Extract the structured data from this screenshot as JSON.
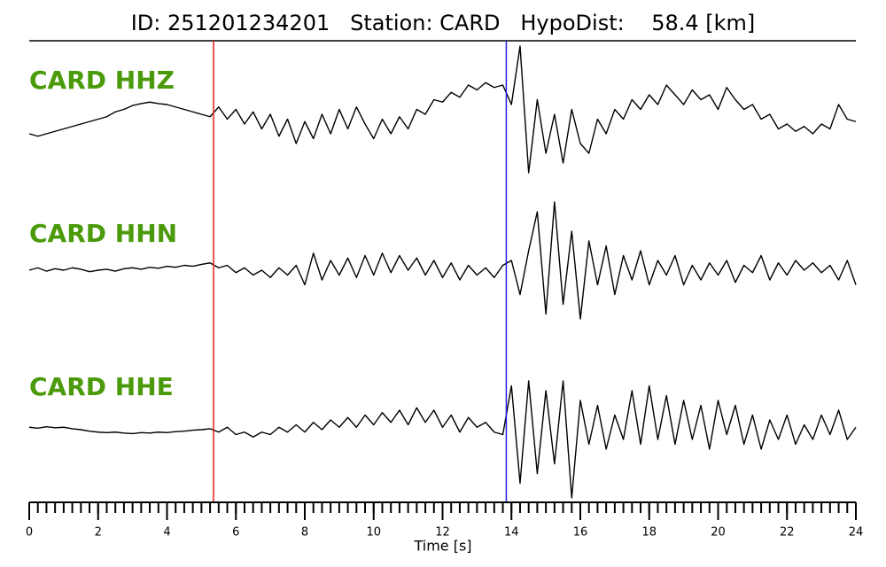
{
  "chart_data": {
    "type": "seismogram",
    "title": "ID: 251201234201   Station: CARD   HypoDist:    58.4 [km]",
    "x_label": "Time [s]",
    "xlim": [
      0,
      24
    ],
    "xticks": [
      0,
      2,
      4,
      6,
      8,
      10,
      12,
      14,
      16,
      18,
      20,
      22,
      24
    ],
    "minor_tick_interval": 0.25,
    "label_color": "#4a9a0a",
    "markers": [
      {
        "x": 5.35,
        "color": "#e8201c"
      },
      {
        "x": 13.85,
        "color": "#2020e0"
      }
    ],
    "x": [
      0,
      0.25,
      0.5,
      0.75,
      1,
      1.25,
      1.5,
      1.75,
      2,
      2.25,
      2.5,
      2.75,
      3,
      3.25,
      3.5,
      3.75,
      4,
      4.25,
      4.5,
      4.75,
      5,
      5.25,
      5.5,
      5.75,
      6,
      6.25,
      6.5,
      6.75,
      7,
      7.25,
      7.5,
      7.75,
      8,
      8.25,
      8.5,
      8.75,
      9,
      9.25,
      9.5,
      9.75,
      10,
      10.25,
      10.5,
      10.75,
      11,
      11.25,
      11.5,
      11.75,
      12,
      12.25,
      12.5,
      12.75,
      13,
      13.25,
      13.5,
      13.75,
      14,
      14.25,
      14.5,
      14.75,
      15,
      15.25,
      15.5,
      15.75,
      16,
      16.25,
      16.5,
      16.75,
      17,
      17.25,
      17.5,
      17.75,
      18,
      18.25,
      18.5,
      18.75,
      19,
      19.25,
      19.5,
      19.75,
      20,
      20.25,
      20.5,
      20.75,
      21,
      21.25,
      21.5,
      21.75,
      22,
      22.25,
      22.5,
      22.75,
      23,
      23.25,
      23.5,
      23.75,
      24
    ],
    "series": [
      {
        "name": "CARD HHZ",
        "color": "#000000",
        "values": [
          -0.2,
          -0.25,
          -0.2,
          -0.15,
          -0.1,
          -0.05,
          0,
          0.05,
          0.1,
          0.15,
          0.25,
          0.3,
          0.38,
          0.42,
          0.45,
          0.42,
          0.4,
          0.35,
          0.3,
          0.25,
          0.2,
          0.15,
          0.35,
          0.1,
          0.3,
          0,
          0.25,
          -0.1,
          0.2,
          -0.25,
          0.1,
          -0.4,
          0.05,
          -0.3,
          0.2,
          -0.2,
          0.3,
          -0.1,
          0.35,
          0,
          -0.3,
          0.1,
          -0.2,
          0.15,
          -0.1,
          0.3,
          0.2,
          0.5,
          0.45,
          0.65,
          0.55,
          0.8,
          0.7,
          0.85,
          0.75,
          0.8,
          0.4,
          1.6,
          -1.0,
          0.5,
          -0.6,
          0.2,
          -0.8,
          0.3,
          -0.4,
          -0.6,
          0.1,
          -0.2,
          0.3,
          0.1,
          0.5,
          0.3,
          0.6,
          0.4,
          0.8,
          0.6,
          0.4,
          0.7,
          0.5,
          0.6,
          0.3,
          0.75,
          0.5,
          0.3,
          0.4,
          0.1,
          0.2,
          -0.1,
          0,
          -0.15,
          -0.05,
          -0.2,
          0,
          -0.1,
          0.4,
          0.1,
          0.05
        ]
      },
      {
        "name": "CARD HHN",
        "color": "#000000",
        "values": [
          0,
          0.05,
          -0.02,
          0.03,
          0,
          0.05,
          0.02,
          -0.03,
          0,
          0.02,
          -0.02,
          0.03,
          0.05,
          0.02,
          0.06,
          0.04,
          0.08,
          0.06,
          0.1,
          0.08,
          0.12,
          0.15,
          0.05,
          0.1,
          -0.05,
          0.05,
          -0.1,
          0,
          -0.15,
          0.05,
          -0.1,
          0.1,
          -0.3,
          0.35,
          -0.2,
          0.2,
          -0.1,
          0.25,
          -0.15,
          0.3,
          -0.1,
          0.35,
          -0.05,
          0.3,
          0,
          0.25,
          -0.1,
          0.2,
          -0.15,
          0.15,
          -0.2,
          0.1,
          -0.1,
          0.05,
          -0.15,
          0.1,
          0.2,
          -0.5,
          0.4,
          1.2,
          -0.9,
          1.4,
          -0.7,
          0.8,
          -1.0,
          0.6,
          -0.3,
          0.5,
          -0.5,
          0.3,
          -0.2,
          0.4,
          -0.3,
          0.2,
          -0.1,
          0.3,
          -0.3,
          0.1,
          -0.2,
          0.15,
          -0.1,
          0.2,
          -0.25,
          0.1,
          -0.05,
          0.3,
          -0.2,
          0.15,
          -0.1,
          0.2,
          0,
          0.15,
          -0.05,
          0.1,
          -0.2,
          0.2,
          -0.3
        ]
      },
      {
        "name": "CARD HHE",
        "color": "#000000",
        "values": [
          0.05,
          0.03,
          0.06,
          0.04,
          0.05,
          0.02,
          0,
          -0.03,
          -0.05,
          -0.06,
          -0.05,
          -0.07,
          -0.08,
          -0.06,
          -0.07,
          -0.05,
          -0.06,
          -0.04,
          -0.03,
          -0.01,
          0,
          0.02,
          -0.05,
          0.05,
          -0.1,
          -0.05,
          -0.15,
          -0.05,
          -0.1,
          0.05,
          -0.05,
          0.1,
          -0.05,
          0.15,
          0,
          0.2,
          0.05,
          0.25,
          0.05,
          0.3,
          0.1,
          0.35,
          0.15,
          0.4,
          0.1,
          0.45,
          0.15,
          0.4,
          0.05,
          0.3,
          -0.05,
          0.25,
          0.05,
          0.15,
          -0.05,
          -0.1,
          0.9,
          -1.1,
          1.0,
          -0.9,
          0.8,
          -0.7,
          1.0,
          -1.4,
          0.6,
          -0.3,
          0.5,
          -0.4,
          0.3,
          -0.2,
          0.8,
          -0.3,
          0.9,
          -0.2,
          0.7,
          -0.3,
          0.6,
          -0.2,
          0.5,
          -0.4,
          0.6,
          -0.1,
          0.5,
          -0.3,
          0.3,
          -0.4,
          0.2,
          -0.2,
          0.3,
          -0.3,
          0.1,
          -0.2,
          0.3,
          -0.1,
          0.4,
          -0.2,
          0.05
        ]
      }
    ]
  }
}
